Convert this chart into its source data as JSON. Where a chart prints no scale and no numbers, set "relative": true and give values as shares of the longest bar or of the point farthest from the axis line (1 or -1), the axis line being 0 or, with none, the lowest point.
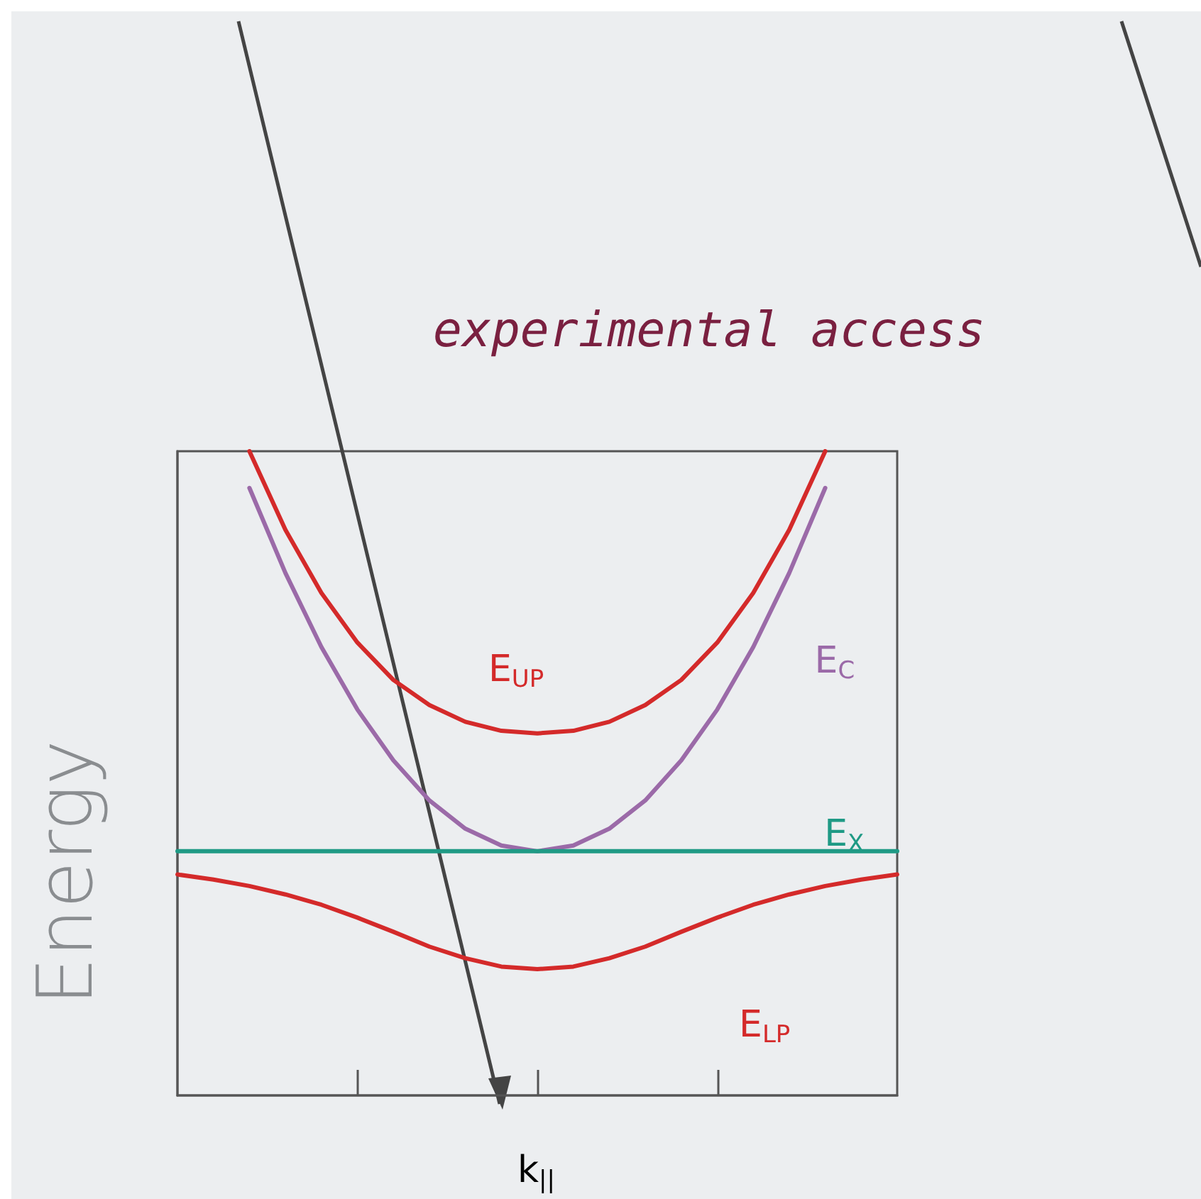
{
  "chart_data": {
    "type": "line",
    "relative": true,
    "xlabel": "k$_{||}$",
    "ylabel": "Energy",
    "annotations": [
      "experimental access"
    ],
    "categories": [
      null,
      null,
      null,
      null,
      null,
      null,
      null,
      null,
      null,
      null,
      null,
      null,
      null,
      null,
      null,
      null,
      null,
      null,
      null,
      null,
      null
    ],
    "series": [
      {
        "name": "E$_{UP}$",
        "color": "#d42a2a",
        "values": [
          null,
          null,
          1,
          0.878,
          0.78,
          0.703,
          0.645,
          0.606,
          0.58,
          0.566,
          0.562,
          0.566,
          0.58,
          0.606,
          0.645,
          0.703,
          0.78,
          0.878,
          1,
          null,
          null
        ]
      },
      {
        "name": "E$_{C}$",
        "color": "#9b6aa8",
        "values": [
          null,
          null,
          0.943,
          0.811,
          0.696,
          0.599,
          0.52,
          0.458,
          0.414,
          0.388,
          0.379,
          0.388,
          0.414,
          0.458,
          0.52,
          0.599,
          0.696,
          0.811,
          0.943,
          null,
          null
        ]
      },
      {
        "name": "E$_{X}$",
        "color": "#1f9a85",
        "values": [
          0.379,
          0.379,
          0.379,
          0.379,
          0.379,
          0.379,
          0.379,
          0.379,
          0.379,
          0.379,
          0.379,
          0.379,
          0.379,
          0.379,
          0.379,
          0.379,
          0.379,
          0.379,
          0.379,
          0.379,
          0.379
        ]
      },
      {
        "name": "E$_{LP}$",
        "color": "#d42a2a",
        "values": [
          0.343,
          0.335,
          0.325,
          0.312,
          0.296,
          0.276,
          0.254,
          0.231,
          0.213,
          0.2,
          0.196,
          0.2,
          0.213,
          0.231,
          0.254,
          0.276,
          0.296,
          0.312,
          0.325,
          0.335,
          0.343
        ]
      }
    ],
    "legend": false,
    "grid": false,
    "marker": "none",
    "line_style": "solid"
  }
}
